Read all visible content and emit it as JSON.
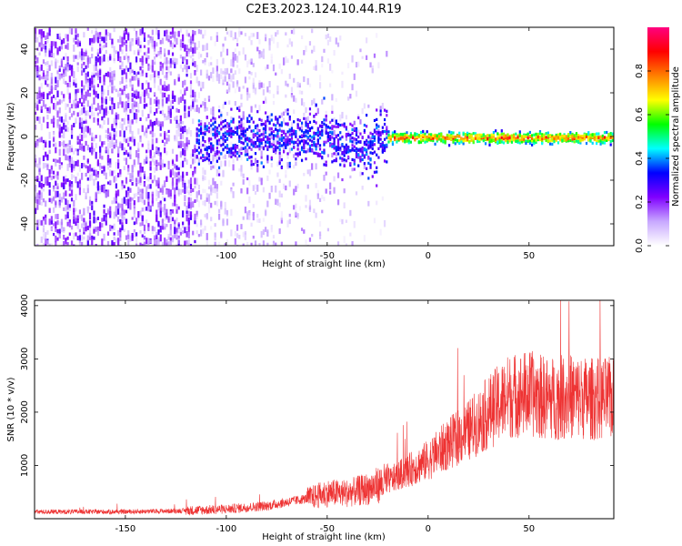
{
  "title": "C2E3.2023.124.10.44.R19",
  "chart_data": [
    {
      "type": "heatmap",
      "xlabel": "Height of straight line (km)",
      "ylabel": "Frequency (Hz)",
      "xlim": [
        -195,
        92
      ],
      "ylim": [
        -50,
        50
      ],
      "x_ticks": [
        -150,
        -100,
        -50,
        0,
        50
      ],
      "y_ticks": [
        -40,
        -20,
        0,
        20,
        40
      ],
      "colorbar": {
        "label": "Normalized spectral amplitude",
        "range": [
          0,
          1
        ],
        "ticks": [
          "0.0",
          "0.2",
          "0.4",
          "0.6",
          "0.8"
        ],
        "colormap": [
          "#ffffff",
          "#c8a8ff",
          "#8000ff",
          "#0000ff",
          "#00ffff",
          "#00ff00",
          "#ffff00",
          "#ff8000",
          "#ff0000",
          "#ff0080"
        ]
      },
      "description_of_values": {
        "diffuse_noise_region_x": [
          -195,
          -110
        ],
        "frequency_track_hz": 0,
        "strong_signal_x": [
          -20,
          92
        ]
      }
    },
    {
      "type": "line",
      "xlabel": "Height of straight line (km)",
      "ylabel": "SNR (10 * v/v)",
      "xlim": [
        -195,
        92
      ],
      "ylim": [
        0,
        4100
      ],
      "x_ticks": [
        -150,
        -100,
        -50,
        0,
        50
      ],
      "y_ticks": [
        1000,
        2000,
        3000,
        4000
      ],
      "color": "#ee3333",
      "series": [
        {
          "x": [
            -195,
            -150,
            -120,
            -100,
            -80,
            -60,
            -50,
            -40,
            -30,
            -20,
            -10,
            0,
            10,
            20,
            30,
            40,
            50,
            60,
            70,
            80,
            92
          ],
          "values": [
            130,
            130,
            150,
            180,
            240,
            380,
            480,
            480,
            560,
            700,
            900,
            1100,
            1400,
            1650,
            2000,
            2300,
            2350,
            2250,
            2300,
            2250,
            2250
          ]
        }
      ]
    }
  ]
}
